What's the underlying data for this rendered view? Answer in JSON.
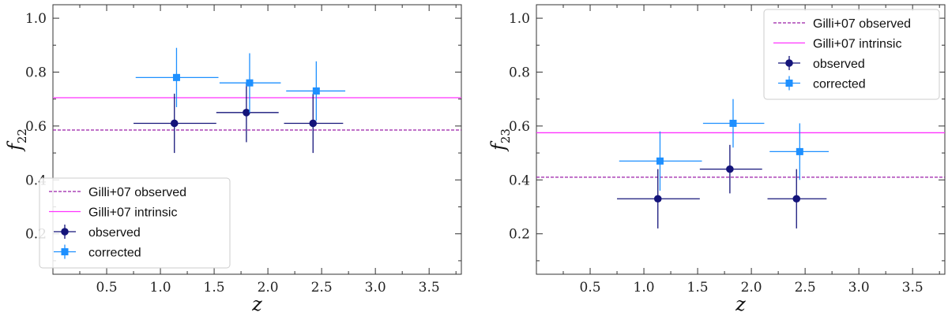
{
  "chart_data": [
    {
      "type": "scatter",
      "xlabel": "z",
      "ylabel": {
        "base": "f",
        "sub": "22"
      },
      "xlim": [
        0.0,
        3.8
      ],
      "ylim": [
        0.05,
        1.05
      ],
      "xticks": [
        0.5,
        1.0,
        1.5,
        2.0,
        2.5,
        3.0,
        3.5
      ],
      "xtick_labels": [
        "0.5",
        "1.0",
        "1.5",
        "2.0",
        "2.5",
        "3.0",
        "3.5"
      ],
      "yticks": [
        0.2,
        0.4,
        0.6,
        0.8,
        1.0
      ],
      "ytick_labels": [
        "0.2",
        "0.4",
        "0.6",
        "0.8",
        "1.0"
      ],
      "grid": false,
      "legend_position": "lower-left",
      "hlines": [
        {
          "name": "Gilli+07 observed",
          "y": 0.585,
          "color": "#9b1fa8",
          "style": "dashed"
        },
        {
          "name": "Gilli+07 intrinsic",
          "y": 0.705,
          "color": "#ff33ff",
          "style": "solid"
        }
      ],
      "series": [
        {
          "name": "observed",
          "marker": "circle",
          "color": "#14147a",
          "points": [
            {
              "x": 1.13,
              "xlo": 0.75,
              "xhi": 1.52,
              "y": 0.61,
              "ylo": 0.5,
              "yhi": 0.72
            },
            {
              "x": 1.8,
              "xlo": 1.52,
              "xhi": 2.1,
              "y": 0.65,
              "ylo": 0.54,
              "yhi": 0.76
            },
            {
              "x": 2.42,
              "xlo": 2.15,
              "xhi": 2.7,
              "y": 0.61,
              "ylo": 0.5,
              "yhi": 0.72
            }
          ]
        },
        {
          "name": "corrected",
          "marker": "square",
          "color": "#1e90ff",
          "points": [
            {
              "x": 1.15,
              "xlo": 0.77,
              "xhi": 1.54,
              "y": 0.78,
              "ylo": 0.67,
              "yhi": 0.89
            },
            {
              "x": 1.83,
              "xlo": 1.55,
              "xhi": 2.12,
              "y": 0.76,
              "ylo": 0.65,
              "yhi": 0.87
            },
            {
              "x": 2.45,
              "xlo": 2.17,
              "xhi": 2.72,
              "y": 0.73,
              "ylo": 0.62,
              "yhi": 0.84
            }
          ]
        }
      ]
    },
    {
      "type": "scatter",
      "xlabel": "z",
      "ylabel": {
        "base": "f",
        "sub": "23"
      },
      "xlim": [
        0.0,
        3.8
      ],
      "ylim": [
        0.05,
        1.05
      ],
      "xticks": [
        0.5,
        1.0,
        1.5,
        2.0,
        2.5,
        3.0,
        3.5
      ],
      "xtick_labels": [
        "0.5",
        "1.0",
        "1.5",
        "2.0",
        "2.5",
        "3.0",
        "3.5"
      ],
      "yticks": [
        0.2,
        0.4,
        0.6,
        0.8,
        1.0
      ],
      "ytick_labels": [
        "0.2",
        "0.4",
        "0.6",
        "0.8",
        "1.0"
      ],
      "grid": false,
      "legend_position": "upper-right",
      "hlines": [
        {
          "name": "Gilli+07 observed",
          "y": 0.41,
          "color": "#9b1fa8",
          "style": "dashed"
        },
        {
          "name": "Gilli+07 intrinsic",
          "y": 0.575,
          "color": "#ff33ff",
          "style": "solid"
        }
      ],
      "series": [
        {
          "name": "observed",
          "marker": "circle",
          "color": "#14147a",
          "points": [
            {
              "x": 1.13,
              "xlo": 0.75,
              "xhi": 1.52,
              "y": 0.33,
              "ylo": 0.22,
              "yhi": 0.44
            },
            {
              "x": 1.8,
              "xlo": 1.52,
              "xhi": 2.1,
              "y": 0.44,
              "ylo": 0.35,
              "yhi": 0.53
            },
            {
              "x": 2.42,
              "xlo": 2.15,
              "xhi": 2.7,
              "y": 0.33,
              "ylo": 0.22,
              "yhi": 0.44
            }
          ]
        },
        {
          "name": "corrected",
          "marker": "square",
          "color": "#1e90ff",
          "points": [
            {
              "x": 1.15,
              "xlo": 0.77,
              "xhi": 1.54,
              "y": 0.47,
              "ylo": 0.36,
              "yhi": 0.58
            },
            {
              "x": 1.83,
              "xlo": 1.55,
              "xhi": 2.12,
              "y": 0.61,
              "ylo": 0.52,
              "yhi": 0.7
            },
            {
              "x": 2.45,
              "xlo": 2.17,
              "xhi": 2.72,
              "y": 0.505,
              "ylo": 0.4,
              "yhi": 0.61
            }
          ]
        }
      ]
    }
  ]
}
